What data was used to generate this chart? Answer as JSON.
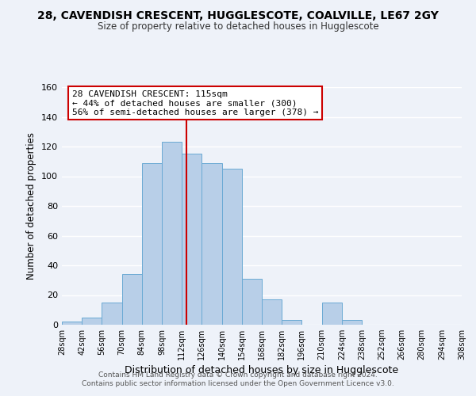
{
  "title_line1": "28, CAVENDISH CRESCENT, HUGGLESCOTE, COALVILLE, LE67 2GY",
  "title_line2": "Size of property relative to detached houses in Hugglescote",
  "xlabel": "Distribution of detached houses by size in Hugglescote",
  "ylabel": "Number of detached properties",
  "bin_edges": [
    28,
    42,
    56,
    70,
    84,
    98,
    112,
    126,
    140,
    154,
    168,
    182,
    196,
    210,
    224,
    238,
    252,
    266,
    280,
    294,
    308
  ],
  "bar_heights": [
    2,
    5,
    15,
    34,
    109,
    123,
    115,
    109,
    105,
    31,
    17,
    3,
    0,
    15,
    3,
    0,
    0,
    0,
    0,
    0
  ],
  "bar_color": "#b8cfe8",
  "bar_edgecolor": "#6aaad4",
  "marker_line_color": "#cc0000",
  "annotation_box_color": "#ffffff",
  "annotation_box_edgecolor": "#cc0000",
  "annotation_line1": "28 CAVENDISH CRESCENT: 115sqm",
  "annotation_line2": "← 44% of detached houses are smaller (300)",
  "annotation_line3": "56% of semi-detached houses are larger (378) →",
  "ylim": [
    0,
    160
  ],
  "yticks": [
    0,
    20,
    40,
    60,
    80,
    100,
    120,
    140,
    160
  ],
  "footer_line1": "Contains HM Land Registry data © Crown copyright and database right 2024.",
  "footer_line2": "Contains public sector information licensed under the Open Government Licence v3.0.",
  "background_color": "#eef2f9",
  "grid_color": "#ffffff"
}
